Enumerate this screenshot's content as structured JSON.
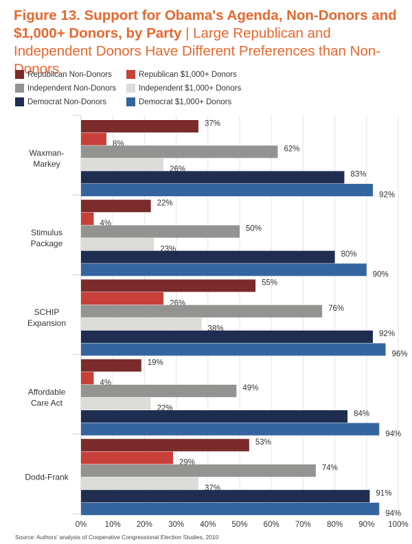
{
  "chart_data": {
    "type": "bar",
    "orientation": "horizontal",
    "title": "Figure 13. Support for Obama's Agenda, Non-Donors and $1,000+ Donors, by Party",
    "subtitle": "Large Republican and Independent Donors Have Different Preferences than Non-Donors",
    "categories": [
      [
        "Waxman-",
        "Markey"
      ],
      [
        "Stimulus",
        "Package"
      ],
      [
        "SCHIP",
        "Expansion"
      ],
      [
        "Affordable",
        "Care Act"
      ],
      [
        "Dodd-Frank"
      ]
    ],
    "series": [
      {
        "name": "Republican Non-Donors",
        "color": "#7a2b2a",
        "values": [
          37,
          22,
          55,
          19,
          53
        ]
      },
      {
        "name": "Republican $1,000+ Donors",
        "color": "#c93f3a",
        "values": [
          8,
          4,
          26,
          4,
          29
        ]
      },
      {
        "name": "Independent Non-Donors",
        "color": "#939491",
        "values": [
          62,
          50,
          76,
          49,
          74
        ]
      },
      {
        "name": "Independent $1,000+ Donors",
        "color": "#dcdcd8",
        "values": [
          26,
          23,
          38,
          22,
          37
        ]
      },
      {
        "name": "Democrat Non-Donors",
        "color": "#1f2d50",
        "values": [
          83,
          80,
          92,
          84,
          91
        ]
      },
      {
        "name": "Democrat $1,000+ Donors",
        "color": "#3565a0",
        "values": [
          92,
          90,
          96,
          94,
          94
        ]
      }
    ],
    "xlim": [
      0,
      100
    ],
    "xticks": [
      "0%",
      "10%",
      "20%",
      "30%",
      "40%",
      "50%",
      "60%",
      "70%",
      "80%",
      "90%",
      "100%"
    ],
    "grid": true,
    "legend_position": "top-left",
    "source": "Source: Authors' analysis of Cooperative Congressional Election Studies, 2010"
  }
}
